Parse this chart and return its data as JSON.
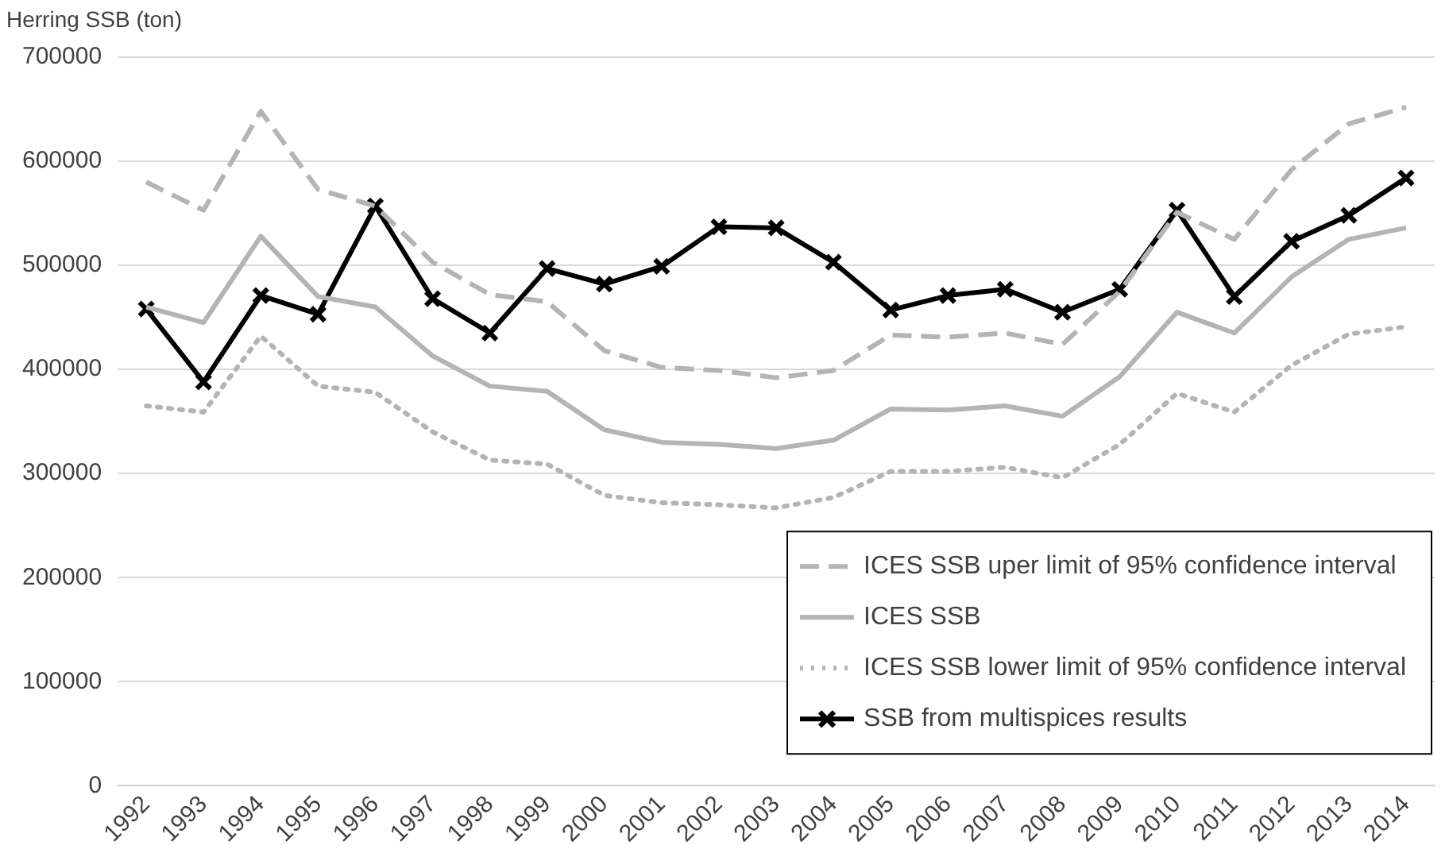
{
  "chart_data": {
    "type": "line",
    "ylabel": "Herring SSB (ton)",
    "categories": [
      "1992",
      "1993",
      "1994",
      "1995",
      "1996",
      "1997",
      "1998",
      "1999",
      "2000",
      "2001",
      "2002",
      "2003",
      "2004",
      "2005",
      "2006",
      "2007",
      "2008",
      "2009",
      "2010",
      "2011",
      "2012",
      "2013",
      "2014"
    ],
    "ylim": [
      0,
      700000
    ],
    "yticks": [
      0,
      100000,
      200000,
      300000,
      400000,
      500000,
      600000,
      700000
    ],
    "grid": "y",
    "legend": "bottom right",
    "series": [
      {
        "name": "ICES SSB uper limit of 95% confidence interval",
        "color": "#b4b4b4",
        "line_style": "dashed",
        "marker": "none",
        "values": [
          580000,
          553000,
          648000,
          573000,
          557000,
          503000,
          472000,
          465000,
          418000,
          402000,
          399000,
          392000,
          399000,
          433000,
          431000,
          435000,
          424000,
          475000,
          551000,
          525000,
          592000,
          636000,
          652000
        ]
      },
      {
        "name": "ICES SSB",
        "color": "#b4b4b4",
        "line_style": "solid",
        "marker": "none",
        "values": [
          460000,
          445000,
          528000,
          470000,
          460000,
          413000,
          384000,
          379000,
          342000,
          330000,
          328000,
          324000,
          332000,
          362000,
          361000,
          365000,
          355000,
          393000,
          455000,
          435000,
          489000,
          525000,
          536000
        ]
      },
      {
        "name": "ICES SSB lower limit of 95% confidence interval",
        "color": "#b4b4b4",
        "line_style": "dotted",
        "marker": "none",
        "values": [
          365000,
          359000,
          432000,
          384000,
          378000,
          340000,
          313000,
          309000,
          279000,
          272000,
          270000,
          267000,
          277000,
          302000,
          302000,
          306000,
          296000,
          328000,
          377000,
          359000,
          404000,
          434000,
          441000
        ]
      },
      {
        "name": "SSB from multispices results",
        "color": "#000000",
        "line_style": "solid",
        "marker": "cross",
        "values": [
          458000,
          388000,
          471000,
          453000,
          557000,
          468000,
          435000,
          497000,
          482000,
          499000,
          537000,
          536000,
          503000,
          457000,
          471000,
          477000,
          455000,
          477000,
          553000,
          470000,
          523000,
          548000,
          584000
        ]
      }
    ]
  }
}
